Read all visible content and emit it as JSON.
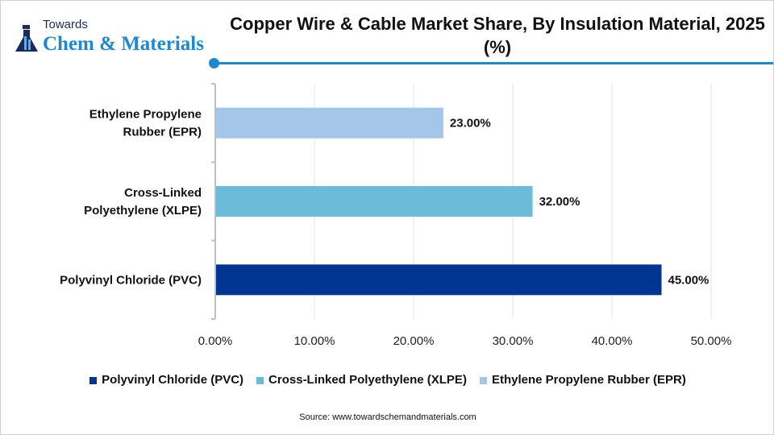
{
  "logo": {
    "top": "Towards",
    "main": "Chem & Materials"
  },
  "title": "Copper Wire & Cable Market Share, By Insulation Material, 2025 (%)",
  "chart_data": {
    "type": "bar",
    "orientation": "horizontal",
    "title": "Copper Wire & Cable Market Share, By Insulation Material, 2025 (%)",
    "categories": [
      "Polyvinyl Chloride (PVC)",
      "Cross-Linked Polyethylene (XLPE)",
      "Ethylene Propylene Rubber (EPR)"
    ],
    "category_lines": [
      [
        "Polyvinyl Chloride (PVC)"
      ],
      [
        "Cross-Linked",
        "Polyethylene (XLPE)"
      ],
      [
        "Ethylene Propylene",
        "Rubber (EPR)"
      ]
    ],
    "values": [
      45,
      32,
      23
    ],
    "data_labels": [
      "45.00%",
      "32.00%",
      "23.00%"
    ],
    "colors": [
      "#003591",
      "#6bbcd9",
      "#a4c6e8"
    ],
    "xlim": [
      0,
      50
    ],
    "xticks": [
      "0.00%",
      "10.00%",
      "20.00%",
      "30.00%",
      "40.00%",
      "50.00%"
    ],
    "grid": true,
    "legend_position": "bottom",
    "legend": [
      "Polyvinyl Chloride (PVC)",
      "Cross-Linked Polyethylene (XLPE)",
      "Ethylene Propylene Rubber (EPR)"
    ]
  },
  "source": "Source: www.towardschemandmaterials.com"
}
